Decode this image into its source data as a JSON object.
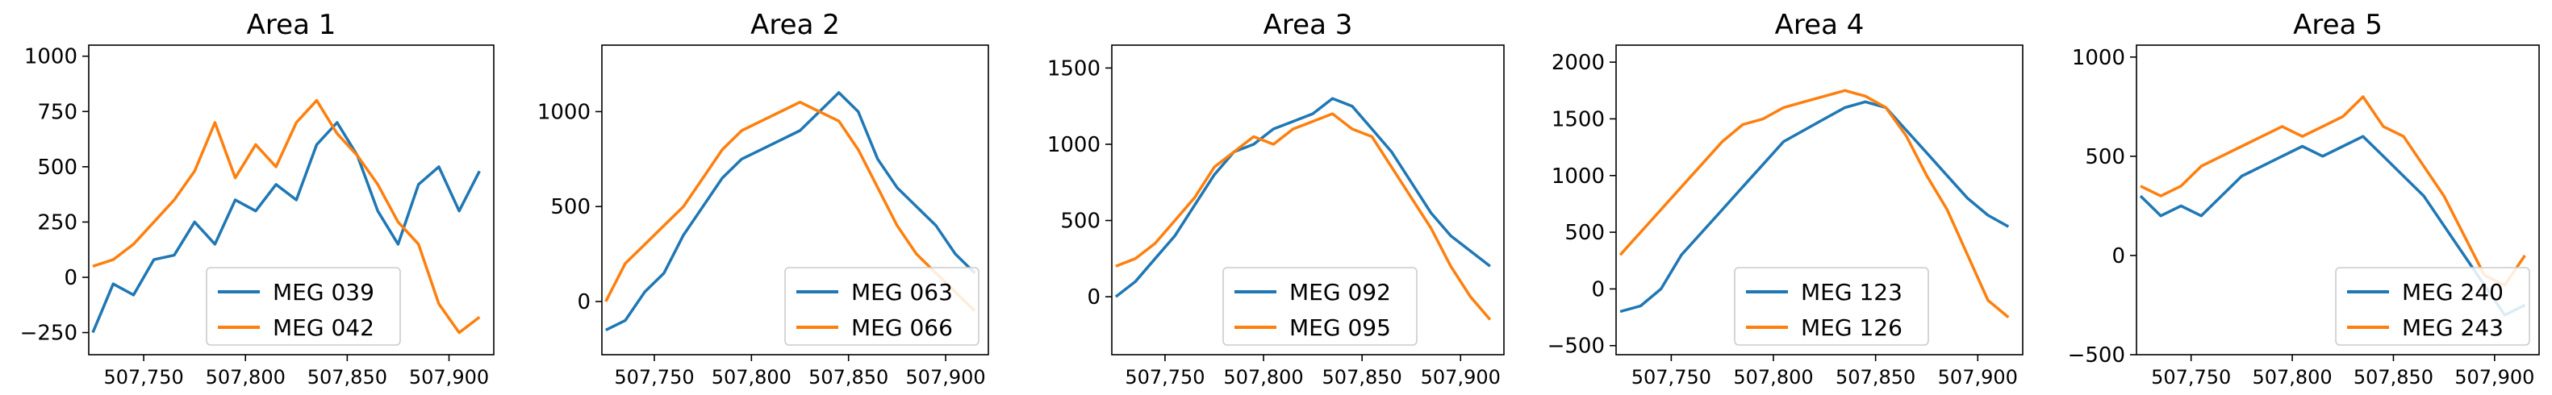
{
  "figure_title": "",
  "colors": {
    "series1": "#1f77b4",
    "series2": "#ff7f0e",
    "axis": "#000000",
    "legend_border": "#cccccc"
  },
  "chart_data": [
    {
      "type": "line",
      "title": "Area 1",
      "xlabel": "",
      "ylabel": "",
      "xlim": [
        507723,
        507922
      ],
      "ylim": [
        -350,
        1050
      ],
      "xticks": [
        507750,
        507800,
        507850,
        507900
      ],
      "xtick_labels": [
        "507,750",
        "507,800",
        "507,850",
        "507,900"
      ],
      "yticks": [
        -250,
        0,
        250,
        500,
        750,
        1000
      ],
      "ytick_labels": [
        "−250",
        "0",
        "250",
        "500",
        "750",
        "1000"
      ],
      "legend_position": "lower-center",
      "series": [
        {
          "name": "MEG 039",
          "x": [
            507725,
            507735,
            507745,
            507755,
            507765,
            507775,
            507785,
            507795,
            507805,
            507815,
            507825,
            507835,
            507845,
            507855,
            507865,
            507875,
            507885,
            507895,
            507905,
            507915
          ],
          "values": [
            -250,
            -30,
            -80,
            80,
            100,
            250,
            150,
            350,
            300,
            420,
            350,
            600,
            700,
            550,
            300,
            150,
            420,
            500,
            300,
            480
          ]
        },
        {
          "name": "MEG 042",
          "x": [
            507725,
            507735,
            507745,
            507755,
            507765,
            507775,
            507785,
            507795,
            507805,
            507815,
            507825,
            507835,
            507845,
            507855,
            507865,
            507875,
            507885,
            507895,
            507905,
            507915
          ],
          "values": [
            50,
            80,
            150,
            250,
            350,
            480,
            700,
            450,
            600,
            500,
            700,
            800,
            650,
            550,
            420,
            250,
            150,
            -120,
            -250,
            -180
          ]
        }
      ]
    },
    {
      "type": "line",
      "title": "Area 2",
      "xlabel": "",
      "ylabel": "",
      "xlim": [
        507723,
        507922
      ],
      "ylim": [
        -280,
        1350
      ],
      "xticks": [
        507750,
        507800,
        507850,
        507900
      ],
      "xtick_labels": [
        "507,750",
        "507,800",
        "507,850",
        "507,900"
      ],
      "yticks": [
        0,
        500,
        1000
      ],
      "ytick_labels": [
        "0",
        "500",
        "1000"
      ],
      "legend_position": "lower-right",
      "series": [
        {
          "name": "MEG 063",
          "x": [
            507725,
            507735,
            507745,
            507755,
            507765,
            507775,
            507785,
            507795,
            507805,
            507815,
            507825,
            507835,
            507845,
            507855,
            507865,
            507875,
            507885,
            507895,
            507905,
            507915
          ],
          "values": [
            -150,
            -100,
            50,
            150,
            350,
            500,
            650,
            750,
            800,
            850,
            900,
            1000,
            1100,
            1000,
            750,
            600,
            500,
            400,
            250,
            150
          ]
        },
        {
          "name": "MEG 066",
          "x": [
            507725,
            507735,
            507745,
            507755,
            507765,
            507775,
            507785,
            507795,
            507805,
            507815,
            507825,
            507835,
            507845,
            507855,
            507865,
            507875,
            507885,
            507895,
            507905,
            507915
          ],
          "values": [
            0,
            200,
            300,
            400,
            500,
            650,
            800,
            900,
            950,
            1000,
            1050,
            1000,
            950,
            800,
            600,
            400,
            250,
            150,
            50,
            -50
          ]
        }
      ]
    },
    {
      "type": "line",
      "title": "Area 3",
      "xlabel": "",
      "ylabel": "",
      "xlim": [
        507723,
        507922
      ],
      "ylim": [
        -380,
        1650
      ],
      "xticks": [
        507750,
        507800,
        507850,
        507900
      ],
      "xtick_labels": [
        "507,750",
        "507,800",
        "507,850",
        "507,900"
      ],
      "yticks": [
        0,
        500,
        1000,
        1500
      ],
      "ytick_labels": [
        "0",
        "500",
        "1000",
        "1500"
      ],
      "legend_position": "lower-center",
      "series": [
        {
          "name": "MEG 092",
          "x": [
            507725,
            507735,
            507745,
            507755,
            507765,
            507775,
            507785,
            507795,
            507805,
            507815,
            507825,
            507835,
            507845,
            507855,
            507865,
            507875,
            507885,
            507895,
            507905,
            507915
          ],
          "values": [
            0,
            100,
            250,
            400,
            600,
            800,
            950,
            1000,
            1100,
            1150,
            1200,
            1300,
            1250,
            1100,
            950,
            750,
            550,
            400,
            300,
            200
          ]
        },
        {
          "name": "MEG 095",
          "x": [
            507725,
            507735,
            507745,
            507755,
            507765,
            507775,
            507785,
            507795,
            507805,
            507815,
            507825,
            507835,
            507845,
            507855,
            507865,
            507875,
            507885,
            507895,
            507905,
            507915
          ],
          "values": [
            200,
            250,
            350,
            500,
            650,
            850,
            950,
            1050,
            1000,
            1100,
            1150,
            1200,
            1100,
            1050,
            850,
            650,
            450,
            200,
            0,
            -150
          ]
        }
      ]
    },
    {
      "type": "line",
      "title": "Area 4",
      "xlabel": "",
      "ylabel": "",
      "xlim": [
        507723,
        507922
      ],
      "ylim": [
        -580,
        2150
      ],
      "xticks": [
        507750,
        507800,
        507850,
        507900
      ],
      "xtick_labels": [
        "507,750",
        "507,800",
        "507,850",
        "507,900"
      ],
      "yticks": [
        -500,
        0,
        500,
        1000,
        1500,
        2000
      ],
      "ytick_labels": [
        "−500",
        "0",
        "500",
        "1000",
        "1500",
        "2000"
      ],
      "legend_position": "lower-center",
      "series": [
        {
          "name": "MEG 123",
          "x": [
            507725,
            507735,
            507745,
            507755,
            507765,
            507775,
            507785,
            507795,
            507805,
            507815,
            507825,
            507835,
            507845,
            507855,
            507865,
            507875,
            507885,
            507895,
            507905,
            507915
          ],
          "values": [
            -200,
            -150,
            0,
            300,
            500,
            700,
            900,
            1100,
            1300,
            1400,
            1500,
            1600,
            1650,
            1600,
            1400,
            1200,
            1000,
            800,
            650,
            550
          ]
        },
        {
          "name": "MEG 126",
          "x": [
            507725,
            507735,
            507745,
            507755,
            507765,
            507775,
            507785,
            507795,
            507805,
            507815,
            507825,
            507835,
            507845,
            507855,
            507865,
            507875,
            507885,
            507895,
            507905,
            507915
          ],
          "values": [
            300,
            500,
            700,
            900,
            1100,
            1300,
            1450,
            1500,
            1600,
            1650,
            1700,
            1750,
            1700,
            1600,
            1350,
            1000,
            700,
            300,
            -100,
            -250
          ]
        }
      ]
    },
    {
      "type": "line",
      "title": "Area 5",
      "xlabel": "",
      "ylabel": "",
      "xlim": [
        507723,
        507922
      ],
      "ylim": [
        -500,
        1060
      ],
      "xticks": [
        507750,
        507800,
        507850,
        507900
      ],
      "xtick_labels": [
        "507,750",
        "507,800",
        "507,850",
        "507,900"
      ],
      "yticks": [
        -500,
        0,
        500,
        1000
      ],
      "ytick_labels": [
        "−500",
        "0",
        "500",
        "1000"
      ],
      "legend_position": "lower-right",
      "series": [
        {
          "name": "MEG 240",
          "x": [
            507725,
            507735,
            507745,
            507755,
            507765,
            507775,
            507785,
            507795,
            507805,
            507815,
            507825,
            507835,
            507845,
            507855,
            507865,
            507875,
            507885,
            507895,
            507905,
            507915
          ],
          "values": [
            300,
            200,
            250,
            200,
            300,
            400,
            450,
            500,
            550,
            500,
            550,
            600,
            500,
            400,
            300,
            150,
            0,
            -150,
            -300,
            -250
          ]
        },
        {
          "name": "MEG 243",
          "x": [
            507725,
            507735,
            507745,
            507755,
            507765,
            507775,
            507785,
            507795,
            507805,
            507815,
            507825,
            507835,
            507845,
            507855,
            507865,
            507875,
            507885,
            507895,
            507905,
            507915
          ],
          "values": [
            350,
            300,
            350,
            450,
            500,
            550,
            600,
            650,
            600,
            650,
            700,
            800,
            650,
            600,
            450,
            300,
            100,
            -100,
            -150,
            0
          ]
        }
      ]
    }
  ]
}
